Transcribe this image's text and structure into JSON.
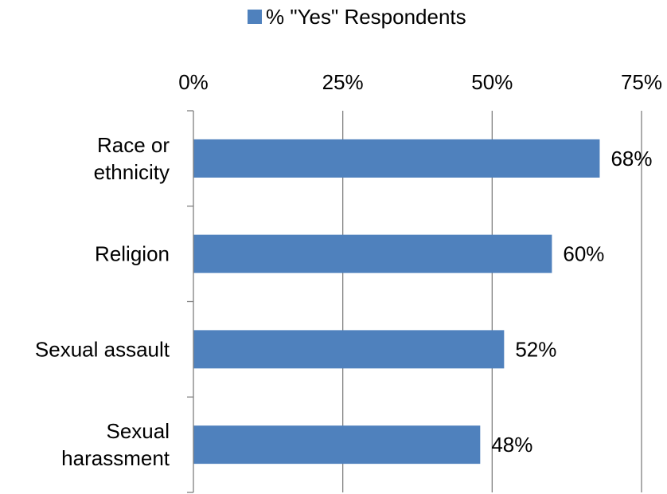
{
  "chart_data": {
    "type": "bar",
    "orientation": "horizontal",
    "categories": [
      [
        "Race or",
        "ethnicity"
      ],
      [
        "Religion"
      ],
      [
        "Sexual assault"
      ],
      [
        "Sexual",
        "harassment"
      ]
    ],
    "series": [
      {
        "name": "% \"Yes\" Respondents",
        "values": [
          68,
          60,
          52,
          48
        ],
        "color": "#4F81BD"
      }
    ],
    "data_labels": [
      "68%",
      "60%",
      "52%",
      "48%"
    ],
    "xaxis": {
      "ticks": [
        0,
        25,
        50,
        75
      ],
      "tick_labels": [
        "0%",
        "25%",
        "50%",
        "75%"
      ],
      "range": [
        0,
        75
      ],
      "position": "top"
    },
    "grid": true,
    "legend": {
      "position": "top",
      "entries": [
        "% \"Yes\" Respondents"
      ]
    },
    "gridline_color": "#808080",
    "axis_color": "#808080"
  }
}
